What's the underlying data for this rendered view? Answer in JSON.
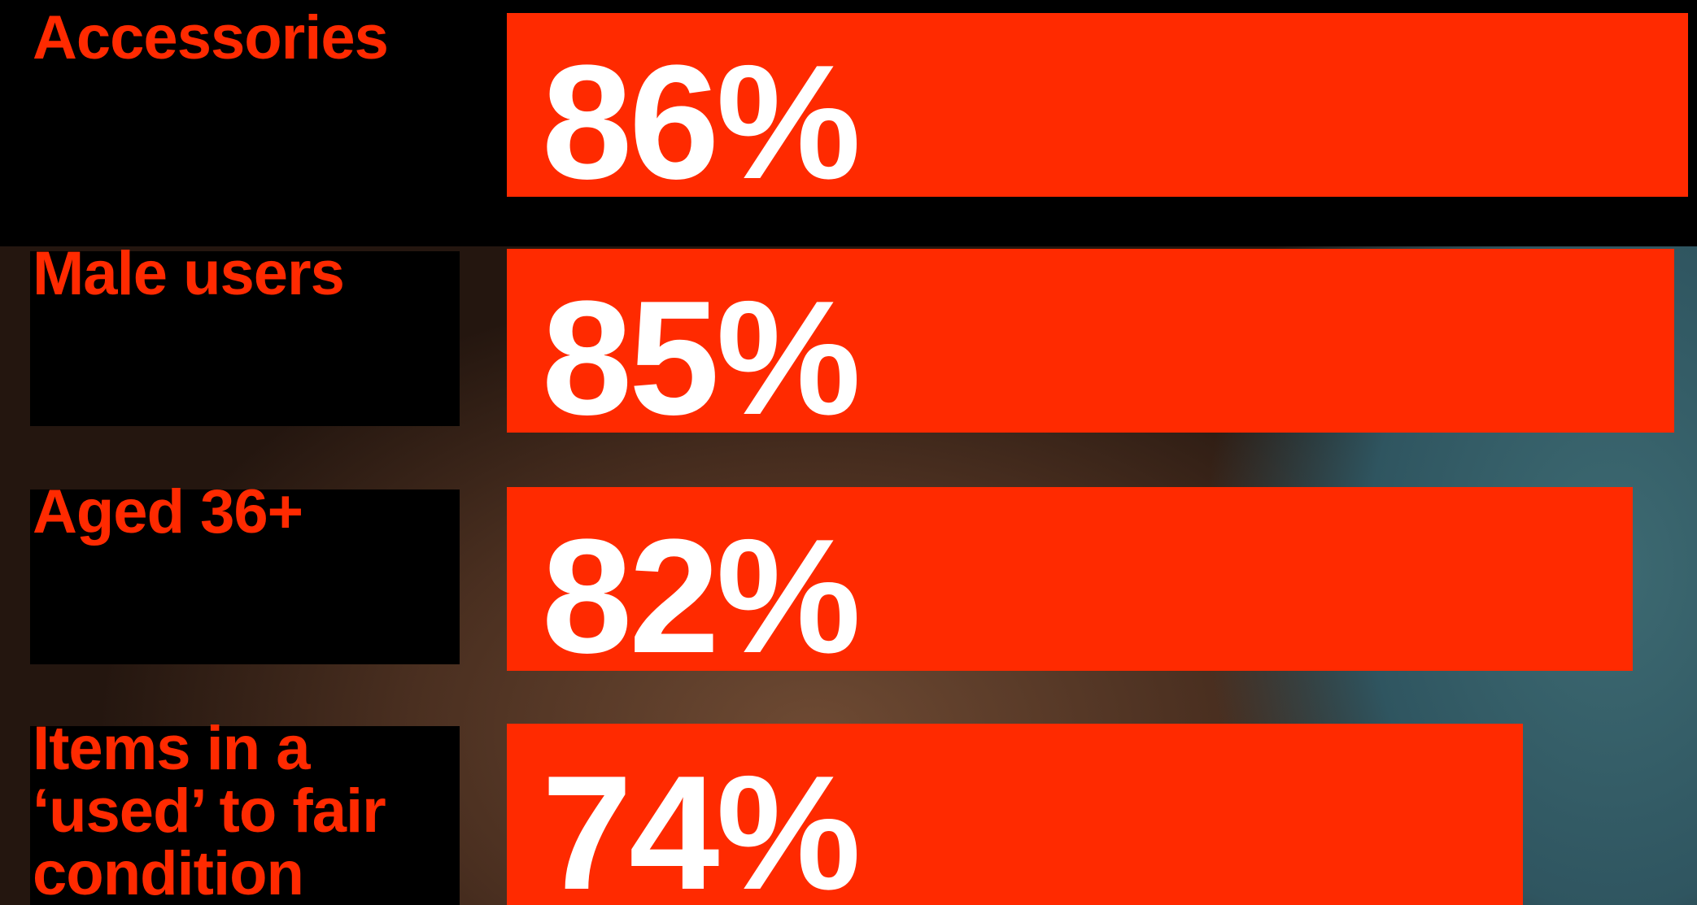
{
  "chart_data": {
    "type": "bar",
    "orientation": "horizontal",
    "categories": [
      "Accessories",
      "Male users",
      "Aged 36+",
      "Items in a ‘used’ to fair condition"
    ],
    "values": [
      86,
      85,
      82,
      74
    ],
    "value_labels": [
      "86%",
      "85%",
      "82%",
      "74%"
    ],
    "color": "#ff2a00"
  }
}
